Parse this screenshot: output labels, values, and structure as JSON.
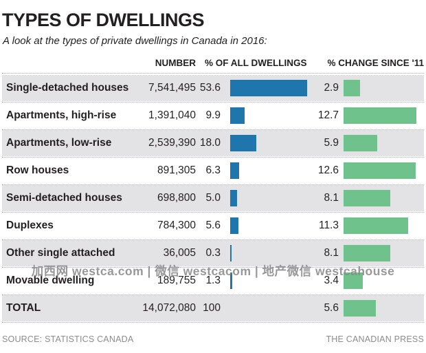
{
  "header": {
    "title": "TYPES OF DWELLINGS",
    "subtitle": "A look at the types of private dwellings in Canada in 2016:"
  },
  "chart_data": {
    "type": "bar",
    "title": "TYPES OF DWELLINGS",
    "subtitle": "A look at the types of private dwellings in Canada in 2016:",
    "columns": [
      "NUMBER",
      "% OF ALL DWELLINGS",
      "% CHANGE SINCE '11"
    ],
    "rows": [
      {
        "label": "Single-detached houses",
        "number": "7,541,495",
        "pct": "53.6",
        "change": "2.9",
        "show_pct_bar": true
      },
      {
        "label": "Apartments, high-rise",
        "number": "1,391,040",
        "pct": "9.9",
        "change": "12.7",
        "show_pct_bar": true
      },
      {
        "label": "Apartments, low-rise",
        "number": "2,539,390",
        "pct": "18.0",
        "change": "5.9",
        "show_pct_bar": true
      },
      {
        "label": "Row houses",
        "number": "891,305",
        "pct": "6.3",
        "change": "12.6",
        "show_pct_bar": true
      },
      {
        "label": "Semi-detached houses",
        "number": "698,800",
        "pct": "5.0",
        "change": "8.1",
        "show_pct_bar": true
      },
      {
        "label": "Duplexes",
        "number": "784,300",
        "pct": "5.6",
        "change": "11.3",
        "show_pct_bar": true
      },
      {
        "label": "Other single attached",
        "number": "36,005",
        "pct": "0.3",
        "change": "8.1",
        "show_pct_bar": true
      },
      {
        "label": "Movable dwelling",
        "number": "189,755",
        "pct": "1.3",
        "change": "3.4",
        "show_pct_bar": true
      },
      {
        "label": "TOTAL",
        "number": "14,072,080",
        "pct": "100",
        "change": "5.6",
        "show_pct_bar": false
      }
    ],
    "colors": {
      "pct_bar": "#1e76ad",
      "change_bar": "#6fc28b",
      "row_band": "#e3e3e5"
    },
    "layout": {
      "legend": "none",
      "grid": "dotted-row-separators"
    }
  },
  "watermark": "加西网 westca.com | 微信 westcacom | 地产微信 westcahouse",
  "footer": {
    "source": "SOURCE: STATISTICS CANADA",
    "credit": "THE CANADIAN PRESS"
  }
}
